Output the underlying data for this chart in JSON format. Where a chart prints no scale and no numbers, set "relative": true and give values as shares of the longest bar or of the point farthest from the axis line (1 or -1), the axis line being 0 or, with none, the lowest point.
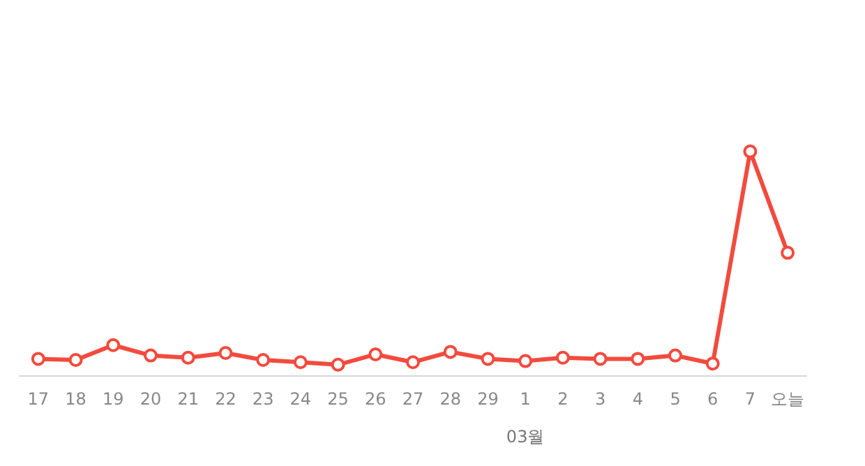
{
  "chart_data": {
    "type": "line",
    "relative": true,
    "marker": "circle",
    "legend": false,
    "categories": [
      "17",
      "18",
      "19",
      "20",
      "21",
      "22",
      "23",
      "24",
      "25",
      "26",
      "27",
      "28",
      "29",
      "1",
      "2",
      "3",
      "4",
      "5",
      "6",
      "7",
      "오늘"
    ],
    "series": [
      {
        "color": "#f24b3e",
        "values": [
          0.077,
          0.072,
          0.138,
          0.092,
          0.082,
          0.103,
          0.072,
          0.062,
          0.051,
          0.097,
          0.062,
          0.108,
          0.077,
          0.067,
          0.082,
          0.077,
          0.077,
          0.092,
          0.056,
          1,
          0.549
        ]
      }
    ],
    "annotations": [
      "03월"
    ]
  }
}
